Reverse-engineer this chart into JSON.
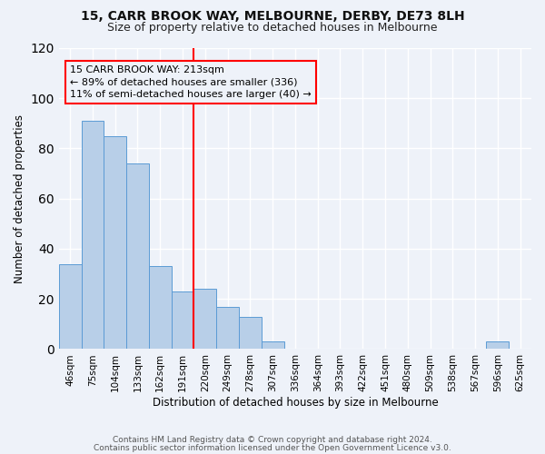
{
  "title1": "15, CARR BROOK WAY, MELBOURNE, DERBY, DE73 8LH",
  "title2": "Size of property relative to detached houses in Melbourne",
  "xlabel": "Distribution of detached houses by size in Melbourne",
  "ylabel": "Number of detached properties",
  "bar_labels": [
    "46sqm",
    "75sqm",
    "104sqm",
    "133sqm",
    "162sqm",
    "191sqm",
    "220sqm",
    "249sqm",
    "278sqm",
    "307sqm",
    "336sqm",
    "364sqm",
    "393sqm",
    "422sqm",
    "451sqm",
    "480sqm",
    "509sqm",
    "538sqm",
    "567sqm",
    "596sqm",
    "625sqm"
  ],
  "bar_values": [
    34,
    91,
    85,
    74,
    33,
    23,
    24,
    17,
    13,
    3,
    0,
    0,
    0,
    0,
    0,
    0,
    0,
    0,
    0,
    3,
    0
  ],
  "bar_color": "#b8cfe8",
  "bar_edge_color": "#5b9bd5",
  "vline_color": "red",
  "vline_x": 5.5,
  "annotation_text": "15 CARR BROOK WAY: 213sqm\n← 89% of detached houses are smaller (336)\n11% of semi-detached houses are larger (40) →",
  "annotation_box_color": "red",
  "ylim": [
    0,
    120
  ],
  "yticks": [
    0,
    20,
    40,
    60,
    80,
    100,
    120
  ],
  "footer1": "Contains HM Land Registry data © Crown copyright and database right 2024.",
  "footer2": "Contains public sector information licensed under the Open Government Licence v3.0.",
  "background_color": "#eef2f9",
  "grid_color": "white"
}
